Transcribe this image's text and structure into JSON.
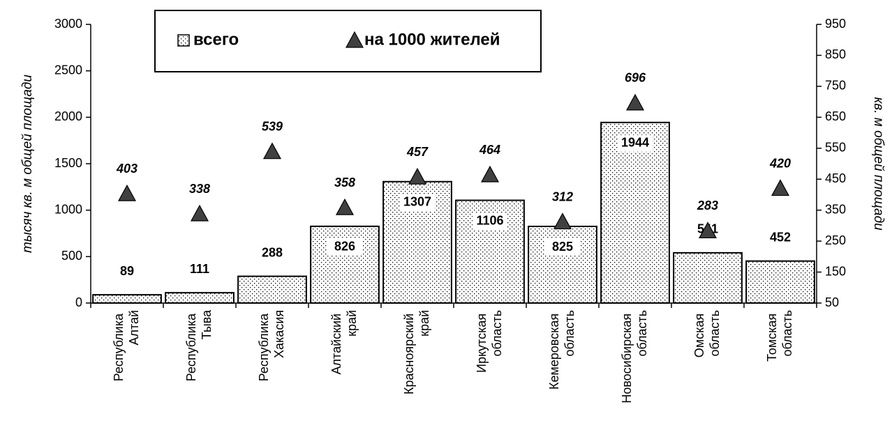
{
  "chart_data": {
    "type": "bar_line",
    "y_label": "тысяч кв. м общей площади",
    "y2_label": "кв. м общей площади",
    "categories": [
      "Республика Алтай",
      "Республика Тыва",
      "Республика Хакасия",
      "Алтайский край",
      "Красноярский край",
      "Иркутская область",
      "Кемеровская область",
      "Новосибирская область",
      "Омская область",
      "Томская область"
    ],
    "series": [
      {
        "name": "всего",
        "type": "bar",
        "color": "#ffffff",
        "values": [
          89,
          111,
          288,
          826,
          1307,
          1106,
          825,
          1944,
          541,
          452
        ]
      },
      {
        "name": "на 1000 жителей",
        "type": "marker",
        "axis": "y2",
        "color": "#404040",
        "values": [
          403,
          338,
          539,
          358,
          457,
          464,
          312,
          696,
          283,
          420
        ]
      }
    ],
    "ylim": [
      0,
      3000
    ],
    "yticks": [
      0,
      500,
      1000,
      1500,
      2000,
      2500,
      3000
    ],
    "y2lim": [
      50,
      950
    ],
    "y2ticks": [
      50,
      150,
      250,
      350,
      450,
      550,
      650,
      750,
      850,
      950
    ]
  }
}
